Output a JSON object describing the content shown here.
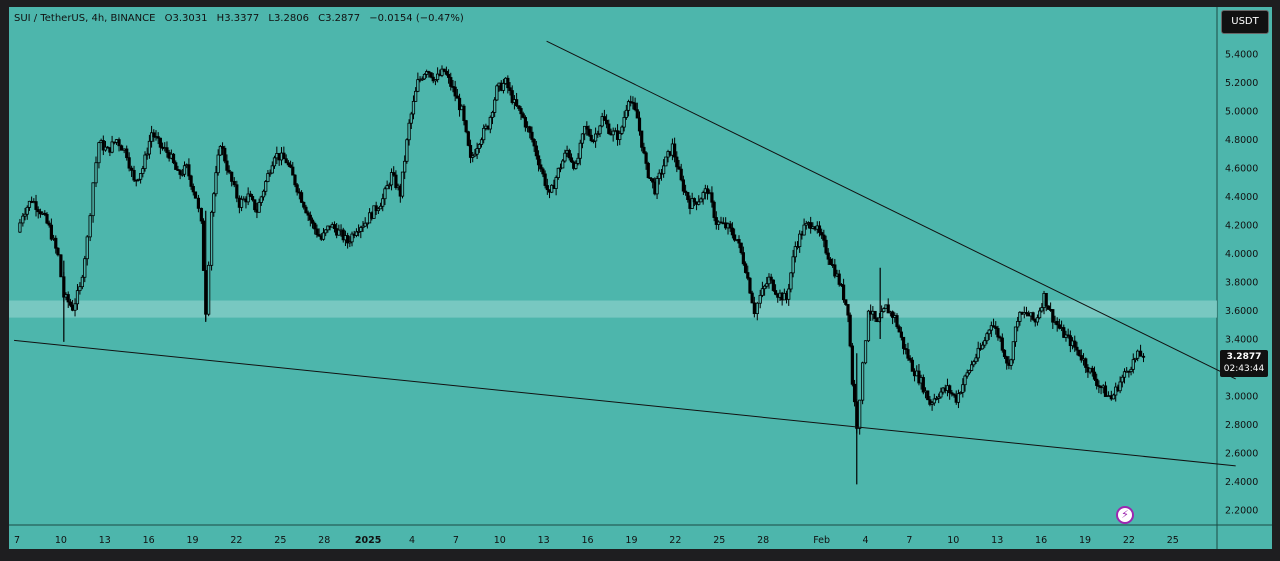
{
  "header": {
    "symbol": "SUI / TetherUS, 4h, BINANCE",
    "open": "O3.3031",
    "high": "H3.3377",
    "low": "L3.2806",
    "close": "C3.2877",
    "change": "−0.0154 (−0.47%)"
  },
  "currency_button": "USDT",
  "last_price": {
    "value": "3.2877",
    "countdown": "02:43:44"
  },
  "alert_icon": "lightning-icon",
  "colors": {
    "background": "#4db6ac",
    "frame": "#1e1e20",
    "support_zone": "#80cbc4",
    "candles": "#000000",
    "alert_accent": "#9c27b0"
  },
  "chart_data": {
    "type": "candlestick",
    "title": "",
    "xlabel": "",
    "ylabel": "",
    "symbol": "SUIUSDT",
    "interval": "4h",
    "ylim": [
      2.1,
      5.6
    ],
    "y_ticks": [
      5.4,
      5.2,
      5.0,
      4.8,
      4.6,
      4.4,
      4.2,
      4.0,
      3.8,
      3.6,
      3.4,
      3.2,
      3.0,
      2.8,
      2.6,
      2.4,
      2.2
    ],
    "y_tick_labels": [
      "5.4000",
      "5.2000",
      "5.0000",
      "4.8000",
      "4.6000",
      "4.4000",
      "4.2000",
      "4.0000",
      "3.8000",
      "3.6000",
      "3.4000",
      "3.2000",
      "3.0000",
      "2.8000",
      "2.6000",
      "2.4000",
      "2.2000"
    ],
    "x_range_days": [
      7.0,
      57.0
    ],
    "x_ticks": [
      {
        "day": 7,
        "label": "7"
      },
      {
        "day": 10,
        "label": "10"
      },
      {
        "day": 13,
        "label": "13"
      },
      {
        "day": 16,
        "label": "16"
      },
      {
        "day": 19,
        "label": "19"
      },
      {
        "day": 22,
        "label": "22"
      },
      {
        "day": 25,
        "label": "25"
      },
      {
        "day": 28,
        "label": "28"
      },
      {
        "day": 31,
        "label": "2025"
      },
      {
        "day": 34,
        "label": "4"
      },
      {
        "day": 37,
        "label": "7"
      },
      {
        "day": 40,
        "label": "10"
      },
      {
        "day": 43,
        "label": "13"
      },
      {
        "day": 46,
        "label": "16"
      },
      {
        "day": 49,
        "label": "19"
      },
      {
        "day": 52,
        "label": "22"
      },
      {
        "day": 55,
        "label": "25"
      },
      {
        "day": 58,
        "label": "28"
      },
      {
        "day": 62,
        "label": "Feb"
      },
      {
        "day": 65,
        "label": "4"
      },
      {
        "day": 68,
        "label": "7"
      },
      {
        "day": 71,
        "label": "10"
      },
      {
        "day": 74,
        "label": "13"
      },
      {
        "day": 77,
        "label": "16"
      },
      {
        "day": 80,
        "label": "19"
      },
      {
        "day": 83,
        "label": "22"
      },
      {
        "day": 86,
        "label": "25"
      }
    ],
    "support_zone": [
      3.55,
      3.67
    ],
    "trendlines": [
      {
        "name": "descending resistance",
        "from": [
          43.2,
          5.49
        ],
        "to": [
          90.3,
          3.12
        ]
      },
      {
        "name": "lower support",
        "from": [
          6.8,
          3.39
        ],
        "to": [
          90.3,
          2.51
        ]
      }
    ],
    "price_path": [
      [
        7.0,
        4.15
      ],
      [
        7.4,
        4.28
      ],
      [
        8.0,
        4.38
      ],
      [
        8.6,
        4.3
      ],
      [
        9.2,
        4.18
      ],
      [
        9.8,
        3.98
      ],
      [
        10.2,
        3.7
      ],
      [
        10.8,
        3.62
      ],
      [
        11.3,
        3.75
      ],
      [
        11.8,
        4.1
      ],
      [
        12.2,
        4.5
      ],
      [
        12.6,
        4.78
      ],
      [
        13.2,
        4.72
      ],
      [
        13.8,
        4.8
      ],
      [
        14.5,
        4.7
      ],
      [
        15.0,
        4.5
      ],
      [
        15.6,
        4.6
      ],
      [
        16.2,
        4.85
      ],
      [
        16.8,
        4.75
      ],
      [
        17.4,
        4.7
      ],
      [
        18.0,
        4.55
      ],
      [
        18.6,
        4.6
      ],
      [
        19.2,
        4.4
      ],
      [
        19.6,
        4.2
      ],
      [
        19.9,
        3.6
      ],
      [
        20.3,
        4.3
      ],
      [
        20.9,
        4.78
      ],
      [
        21.5,
        4.55
      ],
      [
        22.2,
        4.35
      ],
      [
        22.8,
        4.4
      ],
      [
        23.4,
        4.3
      ],
      [
        24.0,
        4.5
      ],
      [
        24.6,
        4.7
      ],
      [
        25.4,
        4.65
      ],
      [
        26.0,
        4.5
      ],
      [
        26.6,
        4.35
      ],
      [
        27.2,
        4.2
      ],
      [
        27.8,
        4.1
      ],
      [
        28.4,
        4.2
      ],
      [
        29.0,
        4.15
      ],
      [
        29.6,
        4.08
      ],
      [
        30.2,
        4.18
      ],
      [
        30.8,
        4.22
      ],
      [
        31.4,
        4.3
      ],
      [
        32.0,
        4.38
      ],
      [
        32.6,
        4.55
      ],
      [
        33.2,
        4.42
      ],
      [
        33.8,
        4.9
      ],
      [
        34.4,
        5.2
      ],
      [
        35.0,
        5.3
      ],
      [
        35.6,
        5.22
      ],
      [
        36.2,
        5.28
      ],
      [
        36.8,
        5.15
      ],
      [
        37.4,
        5.0
      ],
      [
        38.0,
        4.65
      ],
      [
        38.6,
        4.8
      ],
      [
        39.2,
        4.9
      ],
      [
        39.8,
        5.15
      ],
      [
        40.4,
        5.2
      ],
      [
        41.0,
        5.05
      ],
      [
        41.6,
        4.95
      ],
      [
        42.2,
        4.8
      ],
      [
        42.8,
        4.6
      ],
      [
        43.4,
        4.4
      ],
      [
        44.0,
        4.58
      ],
      [
        44.6,
        4.72
      ],
      [
        45.2,
        4.6
      ],
      [
        45.8,
        4.88
      ],
      [
        46.4,
        4.8
      ],
      [
        47.0,
        4.95
      ],
      [
        47.6,
        4.85
      ],
      [
        48.2,
        4.82
      ],
      [
        48.8,
        5.1
      ],
      [
        49.4,
        4.95
      ],
      [
        50.0,
        4.6
      ],
      [
        50.6,
        4.45
      ],
      [
        51.2,
        4.62
      ],
      [
        51.8,
        4.75
      ],
      [
        52.4,
        4.5
      ],
      [
        53.0,
        4.35
      ],
      [
        53.6,
        4.38
      ],
      [
        54.2,
        4.45
      ],
      [
        54.8,
        4.22
      ],
      [
        55.6,
        4.18
      ],
      [
        56.2,
        4.1
      ],
      [
        56.8,
        3.9
      ],
      [
        57.4,
        3.6
      ],
      [
        57.8,
        3.7
      ],
      [
        58.4,
        3.82
      ],
      [
        59.0,
        3.72
      ],
      [
        59.6,
        3.68
      ],
      [
        60.2,
        4.05
      ],
      [
        60.8,
        4.18
      ],
      [
        61.4,
        4.22
      ],
      [
        62.0,
        4.1
      ],
      [
        62.6,
        3.95
      ],
      [
        63.2,
        3.8
      ],
      [
        63.8,
        3.6
      ],
      [
        64.1,
        3.1
      ],
      [
        64.4,
        2.8
      ],
      [
        64.8,
        3.2
      ],
      [
        65.2,
        3.62
      ],
      [
        65.8,
        3.5
      ],
      [
        66.4,
        3.62
      ],
      [
        67.0,
        3.55
      ],
      [
        67.6,
        3.35
      ],
      [
        68.2,
        3.2
      ],
      [
        68.8,
        3.1
      ],
      [
        69.4,
        2.95
      ],
      [
        70.0,
        3.02
      ],
      [
        70.6,
        3.05
      ],
      [
        71.2,
        2.98
      ],
      [
        71.8,
        3.12
      ],
      [
        72.4,
        3.25
      ],
      [
        73.0,
        3.35
      ],
      [
        73.6,
        3.52
      ],
      [
        74.2,
        3.4
      ],
      [
        74.8,
        3.2
      ],
      [
        75.4,
        3.55
      ],
      [
        76.0,
        3.58
      ],
      [
        76.6,
        3.52
      ],
      [
        77.2,
        3.7
      ],
      [
        77.8,
        3.55
      ],
      [
        78.4,
        3.45
      ],
      [
        79.0,
        3.38
      ],
      [
        79.6,
        3.3
      ],
      [
        80.2,
        3.2
      ],
      [
        80.8,
        3.1
      ],
      [
        81.4,
        3.02
      ],
      [
        81.8,
        2.98
      ],
      [
        82.4,
        3.1
      ],
      [
        83.0,
        3.2
      ],
      [
        83.6,
        3.28
      ],
      [
        84.0,
        3.2877
      ]
    ],
    "wicks": [
      {
        "day": 10.2,
        "high": 3.95,
        "low": 3.38
      },
      {
        "day": 19.9,
        "high": 4.3,
        "low": 3.52
      },
      {
        "day": 64.4,
        "high": 3.3,
        "low": 2.38
      },
      {
        "day": 66.0,
        "high": 3.9,
        "low": 3.4
      }
    ]
  }
}
